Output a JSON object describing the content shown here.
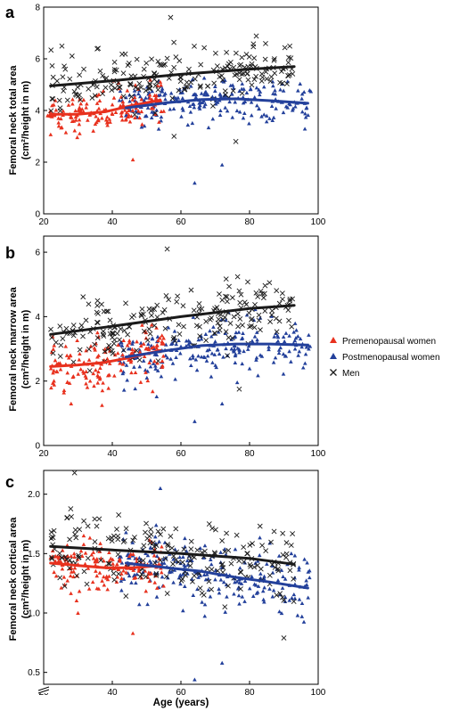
{
  "colors": {
    "premenopausal": "#e8311e",
    "postmenopausal": "#23409b",
    "men": "#1a1a1a"
  },
  "legend": [
    {
      "label": "Premenopausal women",
      "series": "premenopausal",
      "marker": "triangle"
    },
    {
      "label": "Postmenopausal women",
      "series": "postmenopausal",
      "marker": "triangle"
    },
    {
      "label": "Men",
      "series": "men",
      "marker": "cross"
    }
  ],
  "xlabel": "Age (years)",
  "chart_data": [
    {
      "type": "scatter",
      "panel": "a",
      "ylabel": "Femoral neck total area",
      "ylabel_unit": "(cm²/height in m)",
      "xlim": [
        20,
        100
      ],
      "ylim": [
        0,
        8
      ],
      "xticks": [
        "20",
        "40",
        "60",
        "80",
        "100"
      ],
      "yticks": [
        "0",
        "2",
        "4",
        "6",
        "8"
      ],
      "trends": {
        "premenopausal": {
          "x": [
            22,
            30,
            38,
            46,
            54
          ],
          "y": [
            3.85,
            3.85,
            3.95,
            4.2,
            4.4
          ]
        },
        "postmenopausal": {
          "x": [
            44,
            56,
            66,
            76,
            86,
            97
          ],
          "y": [
            4.1,
            4.3,
            4.42,
            4.45,
            4.38,
            4.28
          ]
        },
        "men": {
          "x": [
            22,
            40,
            60,
            80,
            93
          ],
          "y": [
            4.95,
            5.15,
            5.4,
            5.6,
            5.7
          ]
        }
      },
      "series": [
        {
          "name": "Premenopausal women",
          "key": "premenopausal",
          "spread": 0.38,
          "outliers": [
            [
              46,
              2.1
            ]
          ]
        },
        {
          "name": "Postmenopausal women",
          "key": "postmenopausal",
          "spread": 0.42,
          "outliers": [
            [
              64,
              1.2
            ],
            [
              72,
              1.9
            ]
          ]
        },
        {
          "name": "Men",
          "key": "men",
          "spread": 0.55,
          "outliers": [
            [
              57,
              7.6
            ],
            [
              76,
              2.8
            ],
            [
              58,
              3.0
            ]
          ]
        }
      ]
    },
    {
      "type": "scatter",
      "panel": "b",
      "ylabel": "Femoral neck marrow area",
      "ylabel_unit": "(cm²/height in m)",
      "xlim": [
        20,
        100
      ],
      "ylim": [
        0,
        6.5
      ],
      "xticks": [
        "20",
        "40",
        "60",
        "80",
        "100"
      ],
      "yticks": [
        "0",
        "2",
        "4",
        "6"
      ],
      "trends": {
        "premenopausal": {
          "x": [
            22,
            30,
            38,
            46,
            54
          ],
          "y": [
            2.45,
            2.5,
            2.58,
            2.75,
            2.95
          ]
        },
        "postmenopausal": {
          "x": [
            44,
            56,
            66,
            76,
            86,
            97
          ],
          "y": [
            2.75,
            2.95,
            3.1,
            3.15,
            3.15,
            3.12
          ]
        },
        "men": {
          "x": [
            22,
            40,
            60,
            80,
            93
          ],
          "y": [
            3.45,
            3.7,
            4.0,
            4.25,
            4.35
          ]
        }
      },
      "series": [
        {
          "name": "Premenopausal women",
          "key": "premenopausal",
          "spread": 0.4,
          "outliers": [
            [
              37,
              1.25
            ],
            [
              28,
              1.3
            ]
          ]
        },
        {
          "name": "Postmenopausal women",
          "key": "postmenopausal",
          "spread": 0.45,
          "outliers": [
            [
              64,
              0.75
            ],
            [
              72,
              1.3
            ]
          ]
        },
        {
          "name": "Men",
          "key": "men",
          "spread": 0.55,
          "outliers": [
            [
              56,
              6.1
            ],
            [
              77,
              1.75
            ]
          ]
        }
      ]
    },
    {
      "type": "scatter",
      "panel": "c",
      "ylabel": "Femoral neck cortical area",
      "ylabel_unit": "(cm²/height in m)",
      "xlim": [
        20,
        100
      ],
      "ylim": [
        0.4,
        2.2
      ],
      "axis_break": true,
      "xticks": [
        "20",
        "40",
        "60",
        "80",
        "100"
      ],
      "yticks": [
        "0.5",
        "1.0",
        "1.5",
        "2.0"
      ],
      "trends": {
        "premenopausal": {
          "x": [
            22,
            30,
            38,
            46,
            54
          ],
          "y": [
            1.42,
            1.4,
            1.38,
            1.38,
            1.4
          ]
        },
        "postmenopausal": {
          "x": [
            44,
            56,
            66,
            76,
            86,
            97
          ],
          "y": [
            1.42,
            1.38,
            1.35,
            1.3,
            1.26,
            1.21
          ]
        },
        "men": {
          "x": [
            22,
            40,
            60,
            80,
            93
          ],
          "y": [
            1.56,
            1.53,
            1.5,
            1.46,
            1.41
          ]
        }
      },
      "series": [
        {
          "name": "Premenopausal women",
          "key": "premenopausal",
          "spread": 0.11,
          "outliers": [
            [
              30,
              1.0
            ],
            [
              46,
              0.83
            ]
          ]
        },
        {
          "name": "Postmenopausal women",
          "key": "postmenopausal",
          "spread": 0.14,
          "outliers": [
            [
              64,
              0.44
            ],
            [
              72,
              0.58
            ],
            [
              54,
              2.05
            ]
          ]
        },
        {
          "name": "Men",
          "key": "men",
          "spread": 0.15,
          "outliers": [
            [
              29,
              2.18
            ],
            [
              90,
              0.79
            ]
          ]
        }
      ]
    }
  ]
}
